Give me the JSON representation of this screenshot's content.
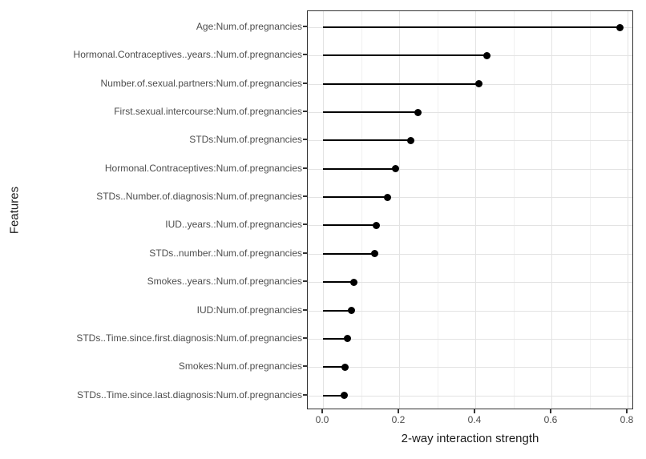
{
  "chart_data": {
    "type": "bar",
    "variant": "lollipop",
    "orientation": "horizontal",
    "title": "",
    "xlabel": "2-way interaction strength",
    "ylabel": "Features",
    "categories": [
      "Age:Num.of.pregnancies",
      "Hormonal.Contraceptives..years.:Num.of.pregnancies",
      "Number.of.sexual.partners:Num.of.pregnancies",
      "First.sexual.intercourse:Num.of.pregnancies",
      "STDs:Num.of.pregnancies",
      "Hormonal.Contraceptives:Num.of.pregnancies",
      "STDs..Number.of.diagnosis:Num.of.pregnancies",
      "IUD..years.:Num.of.pregnancies",
      "STDs..number.:Num.of.pregnancies",
      "Smokes..years.:Num.of.pregnancies",
      "IUD:Num.of.pregnancies",
      "STDs..Time.since.first.diagnosis:Num.of.pregnancies",
      "Smokes:Num.of.pregnancies",
      "STDs..Time.since.last.diagnosis:Num.of.pregnancies"
    ],
    "values": [
      0.78,
      0.43,
      0.41,
      0.25,
      0.23,
      0.19,
      0.17,
      0.14,
      0.135,
      0.08,
      0.075,
      0.065,
      0.058,
      0.055
    ],
    "xlim": [
      0.0,
      0.82
    ],
    "x_ticks": [
      0.0,
      0.2,
      0.4,
      0.6,
      0.8
    ],
    "x_tick_labels": [
      "0.0",
      "0.2",
      "0.4",
      "0.6",
      "0.8"
    ],
    "x_minor_ticks": [
      0.1,
      0.3,
      0.5,
      0.7
    ],
    "grid": true,
    "legend": false,
    "colors": {
      "line": "#000000",
      "dot": "#000000",
      "grid_major": "#e3e3e3",
      "grid_minor": "#f0f0f0",
      "panel_border": "#333333",
      "axis_text": "#4d4d4d",
      "axis_title": "#1a1a1a",
      "background": "#ffffff"
    }
  }
}
